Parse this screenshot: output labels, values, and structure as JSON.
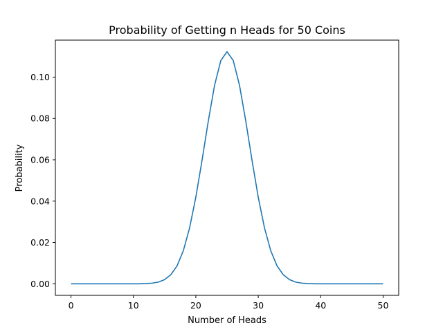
{
  "chart_data": {
    "type": "line",
    "title": "Probability of Getting n Heads for 50 Coins",
    "xlabel": "Number of Heads",
    "ylabel": "Probability",
    "xlim": [
      -2.5,
      52.5
    ],
    "ylim": [
      -0.0056,
      0.1179
    ],
    "x_ticks": [
      0,
      10,
      20,
      30,
      40,
      50
    ],
    "x_tick_labels": [
      "0",
      "10",
      "20",
      "30",
      "40",
      "50"
    ],
    "y_ticks": [
      0.0,
      0.02,
      0.04,
      0.06,
      0.08,
      0.1
    ],
    "y_tick_labels": [
      "0.00",
      "0.02",
      "0.04",
      "0.06",
      "0.08",
      "0.10"
    ],
    "grid": false,
    "series": [
      {
        "color": "#1f77b4",
        "x": [
          0,
          1,
          2,
          3,
          4,
          5,
          6,
          7,
          8,
          9,
          10,
          11,
          12,
          13,
          14,
          15,
          16,
          17,
          18,
          19,
          20,
          21,
          22,
          23,
          24,
          25,
          26,
          27,
          28,
          29,
          30,
          31,
          32,
          33,
          34,
          35,
          36,
          37,
          38,
          39,
          40,
          41,
          42,
          43,
          44,
          45,
          46,
          47,
          48,
          49,
          50
        ],
        "y": [
          0.0,
          0.0,
          0.0,
          0.0,
          0.0,
          0.0,
          0.0,
          0.0,
          0.0,
          0.0,
          0.0,
          0.0,
          0.0001,
          0.0003,
          0.0008,
          0.002,
          0.0044,
          0.0087,
          0.016,
          0.027,
          0.0419,
          0.0598,
          0.0788,
          0.096,
          0.108,
          0.1123,
          0.108,
          0.096,
          0.0788,
          0.0598,
          0.0419,
          0.027,
          0.016,
          0.0087,
          0.0044,
          0.002,
          0.0008,
          0.0003,
          0.0001,
          0.0,
          0.0,
          0.0,
          0.0,
          0.0,
          0.0,
          0.0,
          0.0,
          0.0,
          0.0,
          0.0,
          0.0
        ]
      }
    ]
  }
}
